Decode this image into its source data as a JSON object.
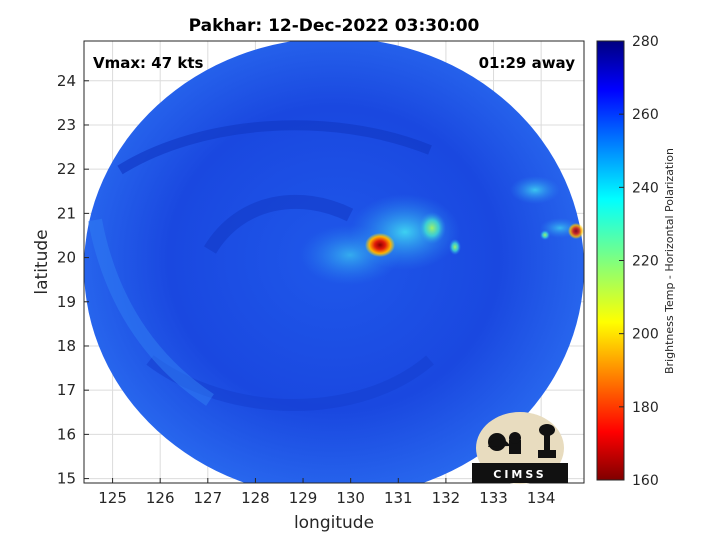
{
  "chart_data": {
    "type": "heatmap",
    "title": "Pakhar: 12-Dec-2022 03:30:00",
    "xlabel": "longitude",
    "ylabel": "latitude",
    "xlim": [
      124.4,
      134.9
    ],
    "ylim": [
      14.9,
      24.9
    ],
    "xticks": [
      125,
      126,
      127,
      128,
      129,
      130,
      131,
      132,
      133,
      134
    ],
    "yticks": [
      15,
      16,
      17,
      18,
      19,
      20,
      21,
      22,
      23,
      24
    ],
    "grid": true,
    "storm_center_approx": {
      "lon": 130.6,
      "lat": 20.2
    },
    "colorbar": {
      "label": "Brightness Temp - Horizontal Polarization",
      "range": [
        160,
        280
      ],
      "ticks": [
        160,
        180,
        200,
        220,
        240,
        260,
        280
      ],
      "colormap": "jet"
    },
    "annotations": {
      "intensity": "Vmax: 47 kts",
      "time_offset": "01:29 away"
    },
    "logo": "CIMSS"
  },
  "colors": {
    "background_field": "#1a4fe8",
    "cold_core": "#d11a0e",
    "warm_band": "#33b6ee"
  }
}
